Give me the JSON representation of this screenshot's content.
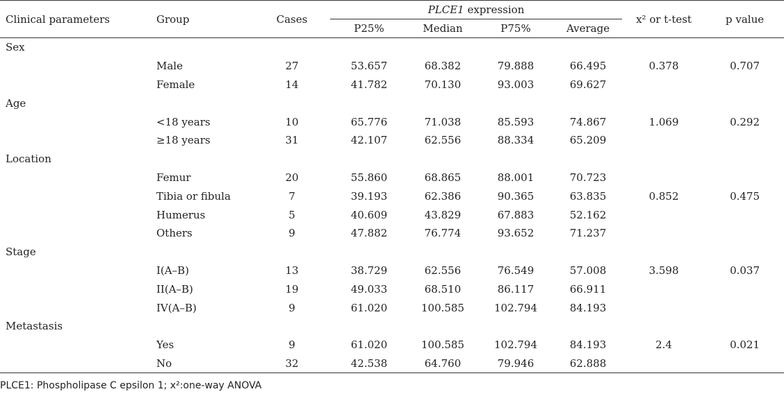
{
  "headers": {
    "param": "Clinical parameters",
    "group": "Group",
    "cases": "Cases",
    "expression_gene": "PLCE1",
    "expression_suffix": " expression",
    "p25": "P25%",
    "median": "Median",
    "p75": "P75%",
    "average": "Average",
    "test": "x² or t-test",
    "pvalue": "p value"
  },
  "sections": [
    {
      "name": "Sex",
      "rows": [
        {
          "group": "Male",
          "cases": "27",
          "p25": "53.657",
          "median": "68.382",
          "p75": "79.888",
          "average": "66.495",
          "test": "0.378",
          "pvalue": "0.707"
        },
        {
          "group": "Female",
          "cases": "14",
          "p25": "41.782",
          "median": "70.130",
          "p75": "93.003",
          "average": "69.627",
          "test": "",
          "pvalue": ""
        }
      ]
    },
    {
      "name": "Age",
      "rows": [
        {
          "group": "<18 years",
          "cases": "10",
          "p25": "65.776",
          "median": "71.038",
          "p75": "85.593",
          "average": "74.867",
          "test": "1.069",
          "pvalue": "0.292"
        },
        {
          "group": "≥18 years",
          "cases": "31",
          "p25": "42.107",
          "median": "62.556",
          "p75": "88.334",
          "average": "65.209",
          "test": "",
          "pvalue": ""
        }
      ]
    },
    {
      "name": "Location",
      "rows": [
        {
          "group": "Femur",
          "cases": "20",
          "p25": "55.860",
          "median": "68.865",
          "p75": "88.001",
          "average": "70.723",
          "test": "",
          "pvalue": ""
        },
        {
          "group": "Tibia or fibula",
          "cases": "7",
          "p25": "39.193",
          "median": "62.386",
          "p75": "90.365",
          "average": "63.835",
          "test": "0.852",
          "pvalue": "0.475"
        },
        {
          "group": "Humerus",
          "cases": "5",
          "p25": "40.609",
          "median": "43.829",
          "p75": "67.883",
          "average": "52.162",
          "test": "",
          "pvalue": ""
        },
        {
          "group": "Others",
          "cases": "9",
          "p25": "47.882",
          "median": "76.774",
          "p75": "93.652",
          "average": "71.237",
          "test": "",
          "pvalue": ""
        }
      ]
    },
    {
      "name": "Stage",
      "rows": [
        {
          "group": "I(A–B)",
          "cases": "13",
          "p25": "38.729",
          "median": "62.556",
          "p75": "76.549",
          "average": "57.008",
          "test": "3.598",
          "pvalue": "0.037"
        },
        {
          "group": "II(A–B)",
          "cases": "19",
          "p25": "49.033",
          "median": "68.510",
          "p75": "86.117",
          "average": "66.911",
          "test": "",
          "pvalue": ""
        },
        {
          "group": "IV(A–B)",
          "cases": "9",
          "p25": "61.020",
          "median": "100.585",
          "p75": "102.794",
          "average": "84.193",
          "test": "",
          "pvalue": ""
        }
      ]
    },
    {
      "name": "Metastasis",
      "rows": [
        {
          "group": "Yes",
          "cases": "9",
          "p25": "61.020",
          "median": "100.585",
          "p75": "102.794",
          "average": "84.193",
          "test": "2.4",
          "pvalue": "0.021"
        },
        {
          "group": "No",
          "cases": "32",
          "p25": "42.538",
          "median": "64.760",
          "p75": "79.946",
          "average": "62.888",
          "test": "",
          "pvalue": ""
        }
      ]
    }
  ],
  "footnote": "PLCE1: Phospholipase C epsilon 1; x²:one-way ANOVA"
}
